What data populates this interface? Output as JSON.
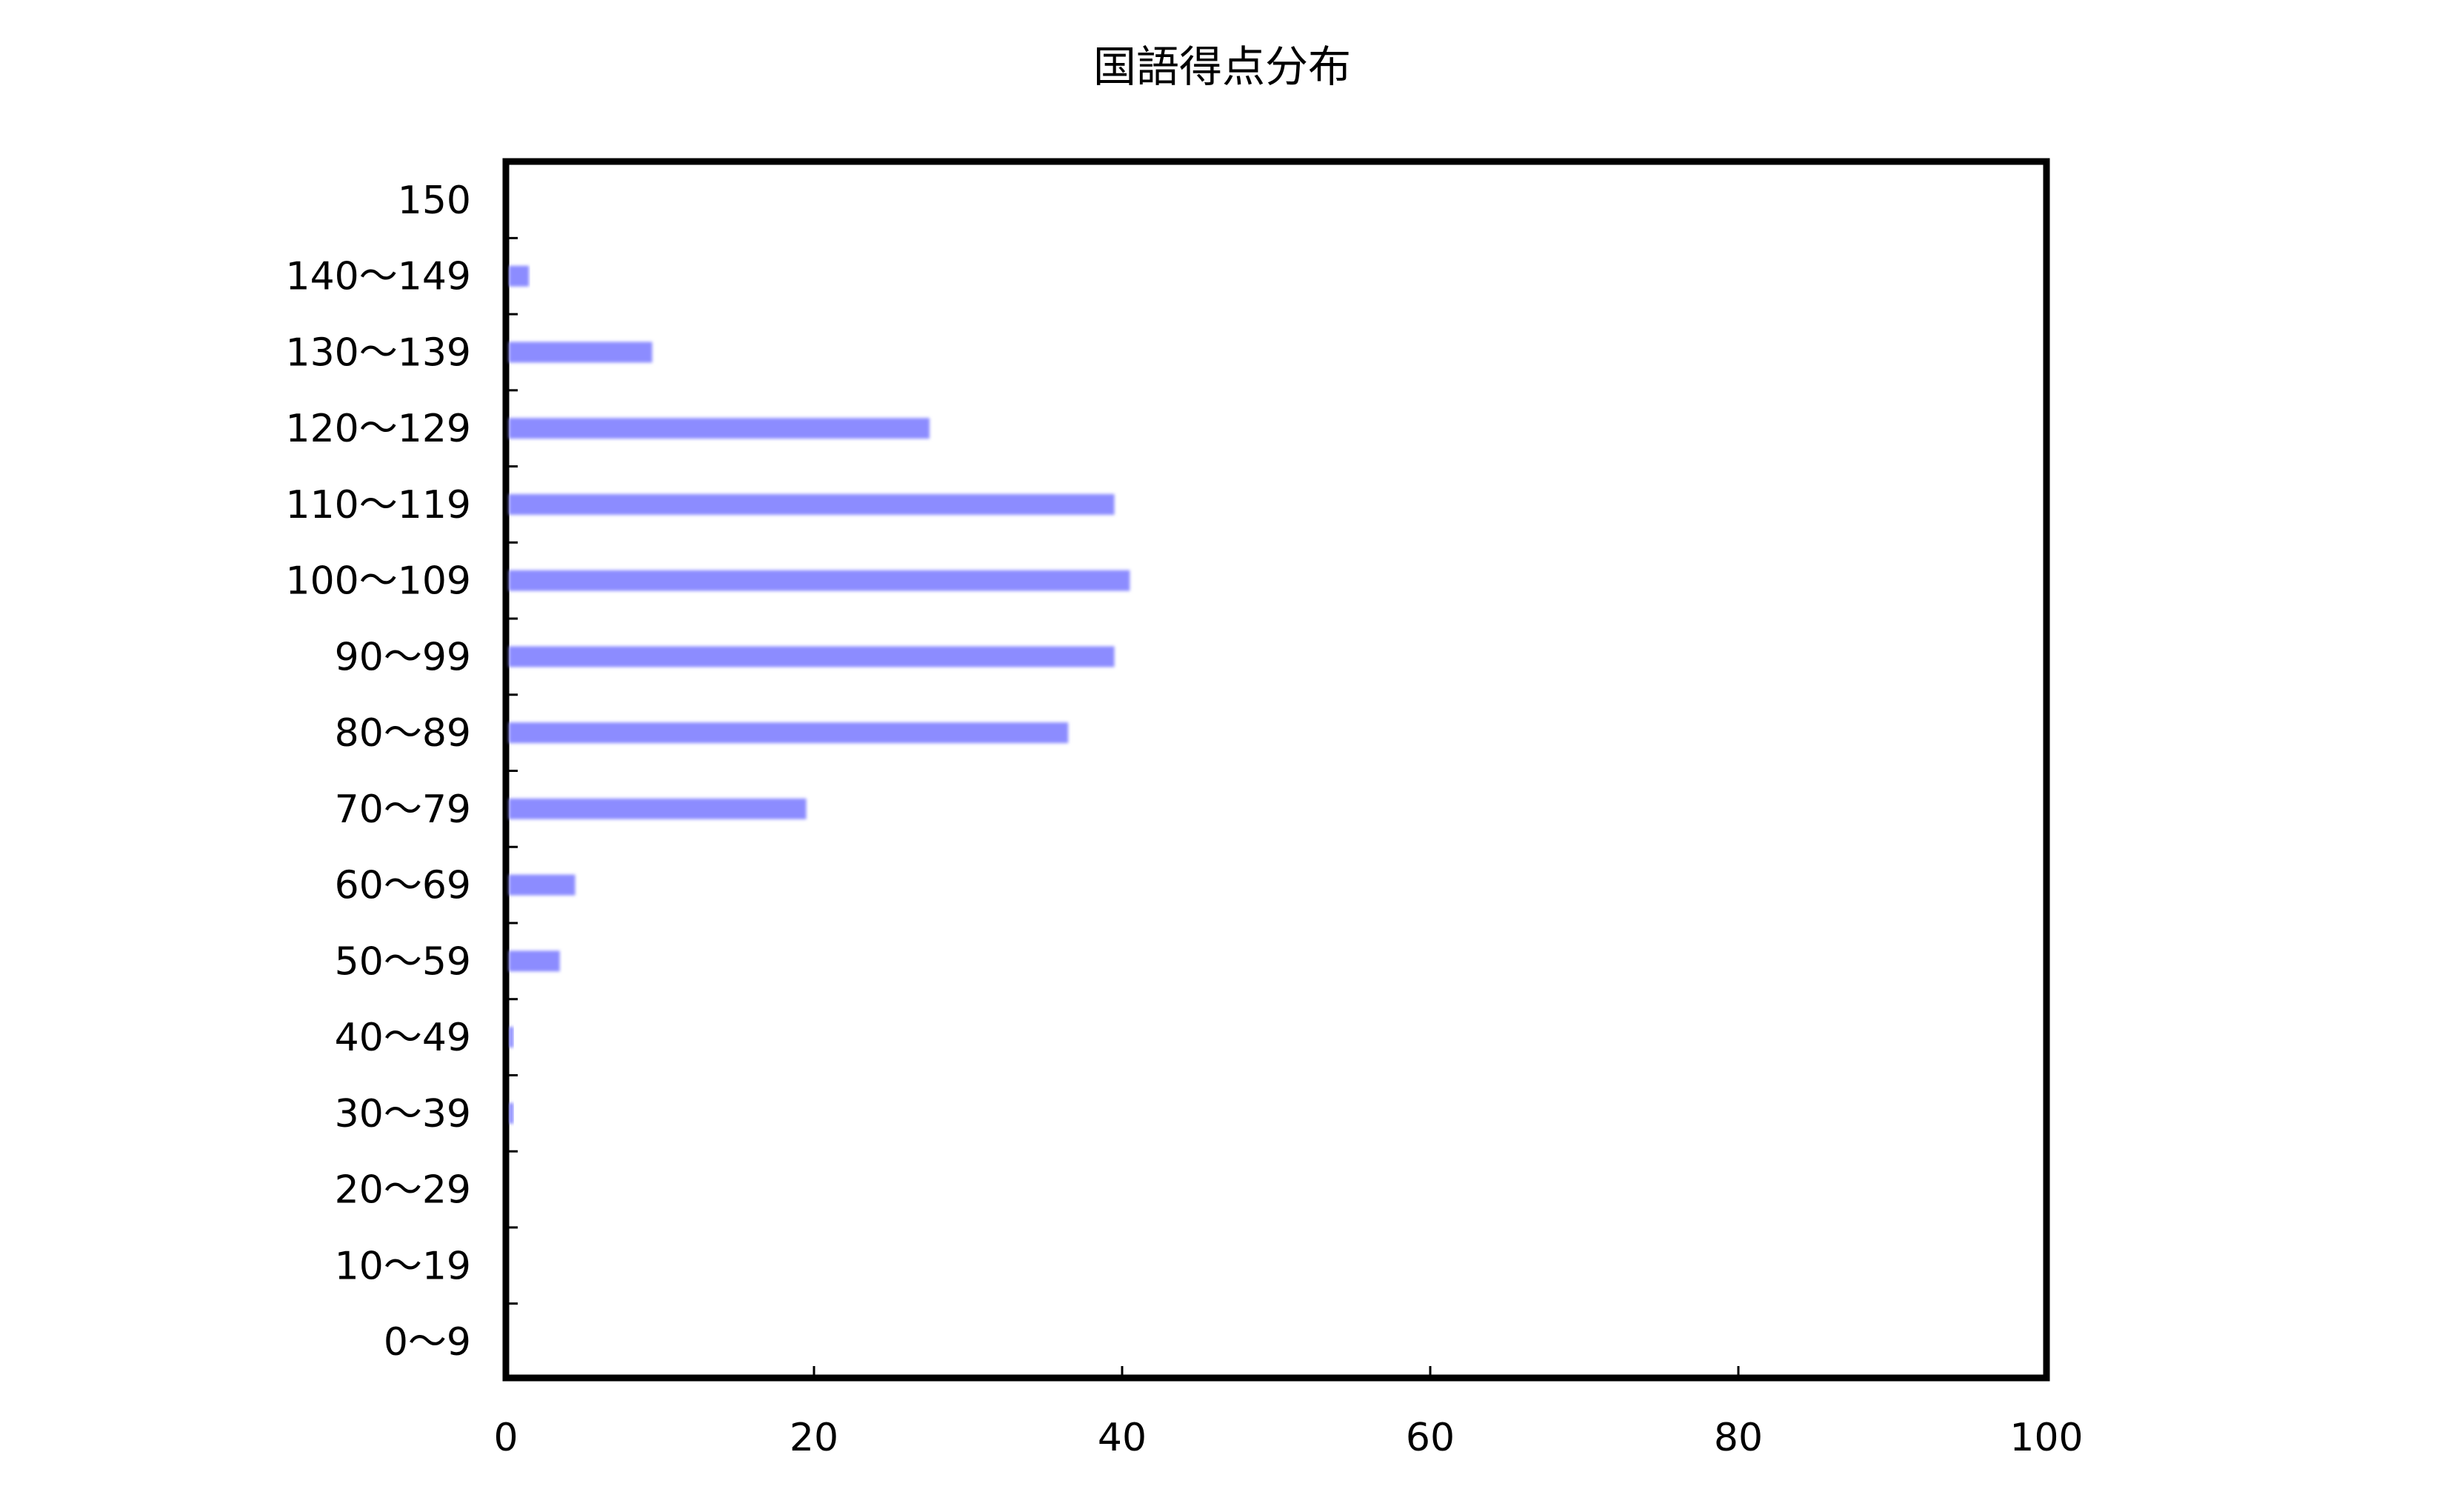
{
  "chart_data": {
    "type": "bar",
    "orientation": "horizontal",
    "title": "国語得点分布",
    "xlabel": "",
    "ylabel": "",
    "categories": [
      "0〜9",
      "10〜19",
      "20〜29",
      "30〜39",
      "40〜49",
      "50〜59",
      "60〜69",
      "70〜79",
      "80〜89",
      "90〜99",
      "100〜109",
      "110〜119",
      "120〜129",
      "130〜139",
      "140〜149",
      "150"
    ],
    "values": [
      0,
      0,
      0,
      0.5,
      0.5,
      3.5,
      4.5,
      19.5,
      36.5,
      39.5,
      40.5,
      39.5,
      27.5,
      9.5,
      1.5,
      0
    ],
    "xlim": [
      0,
      100
    ],
    "xticks": [
      "0",
      "20",
      "40",
      "60",
      "80",
      "100"
    ],
    "grid": false,
    "legend": "none",
    "bar_color": "#8c8cff"
  }
}
